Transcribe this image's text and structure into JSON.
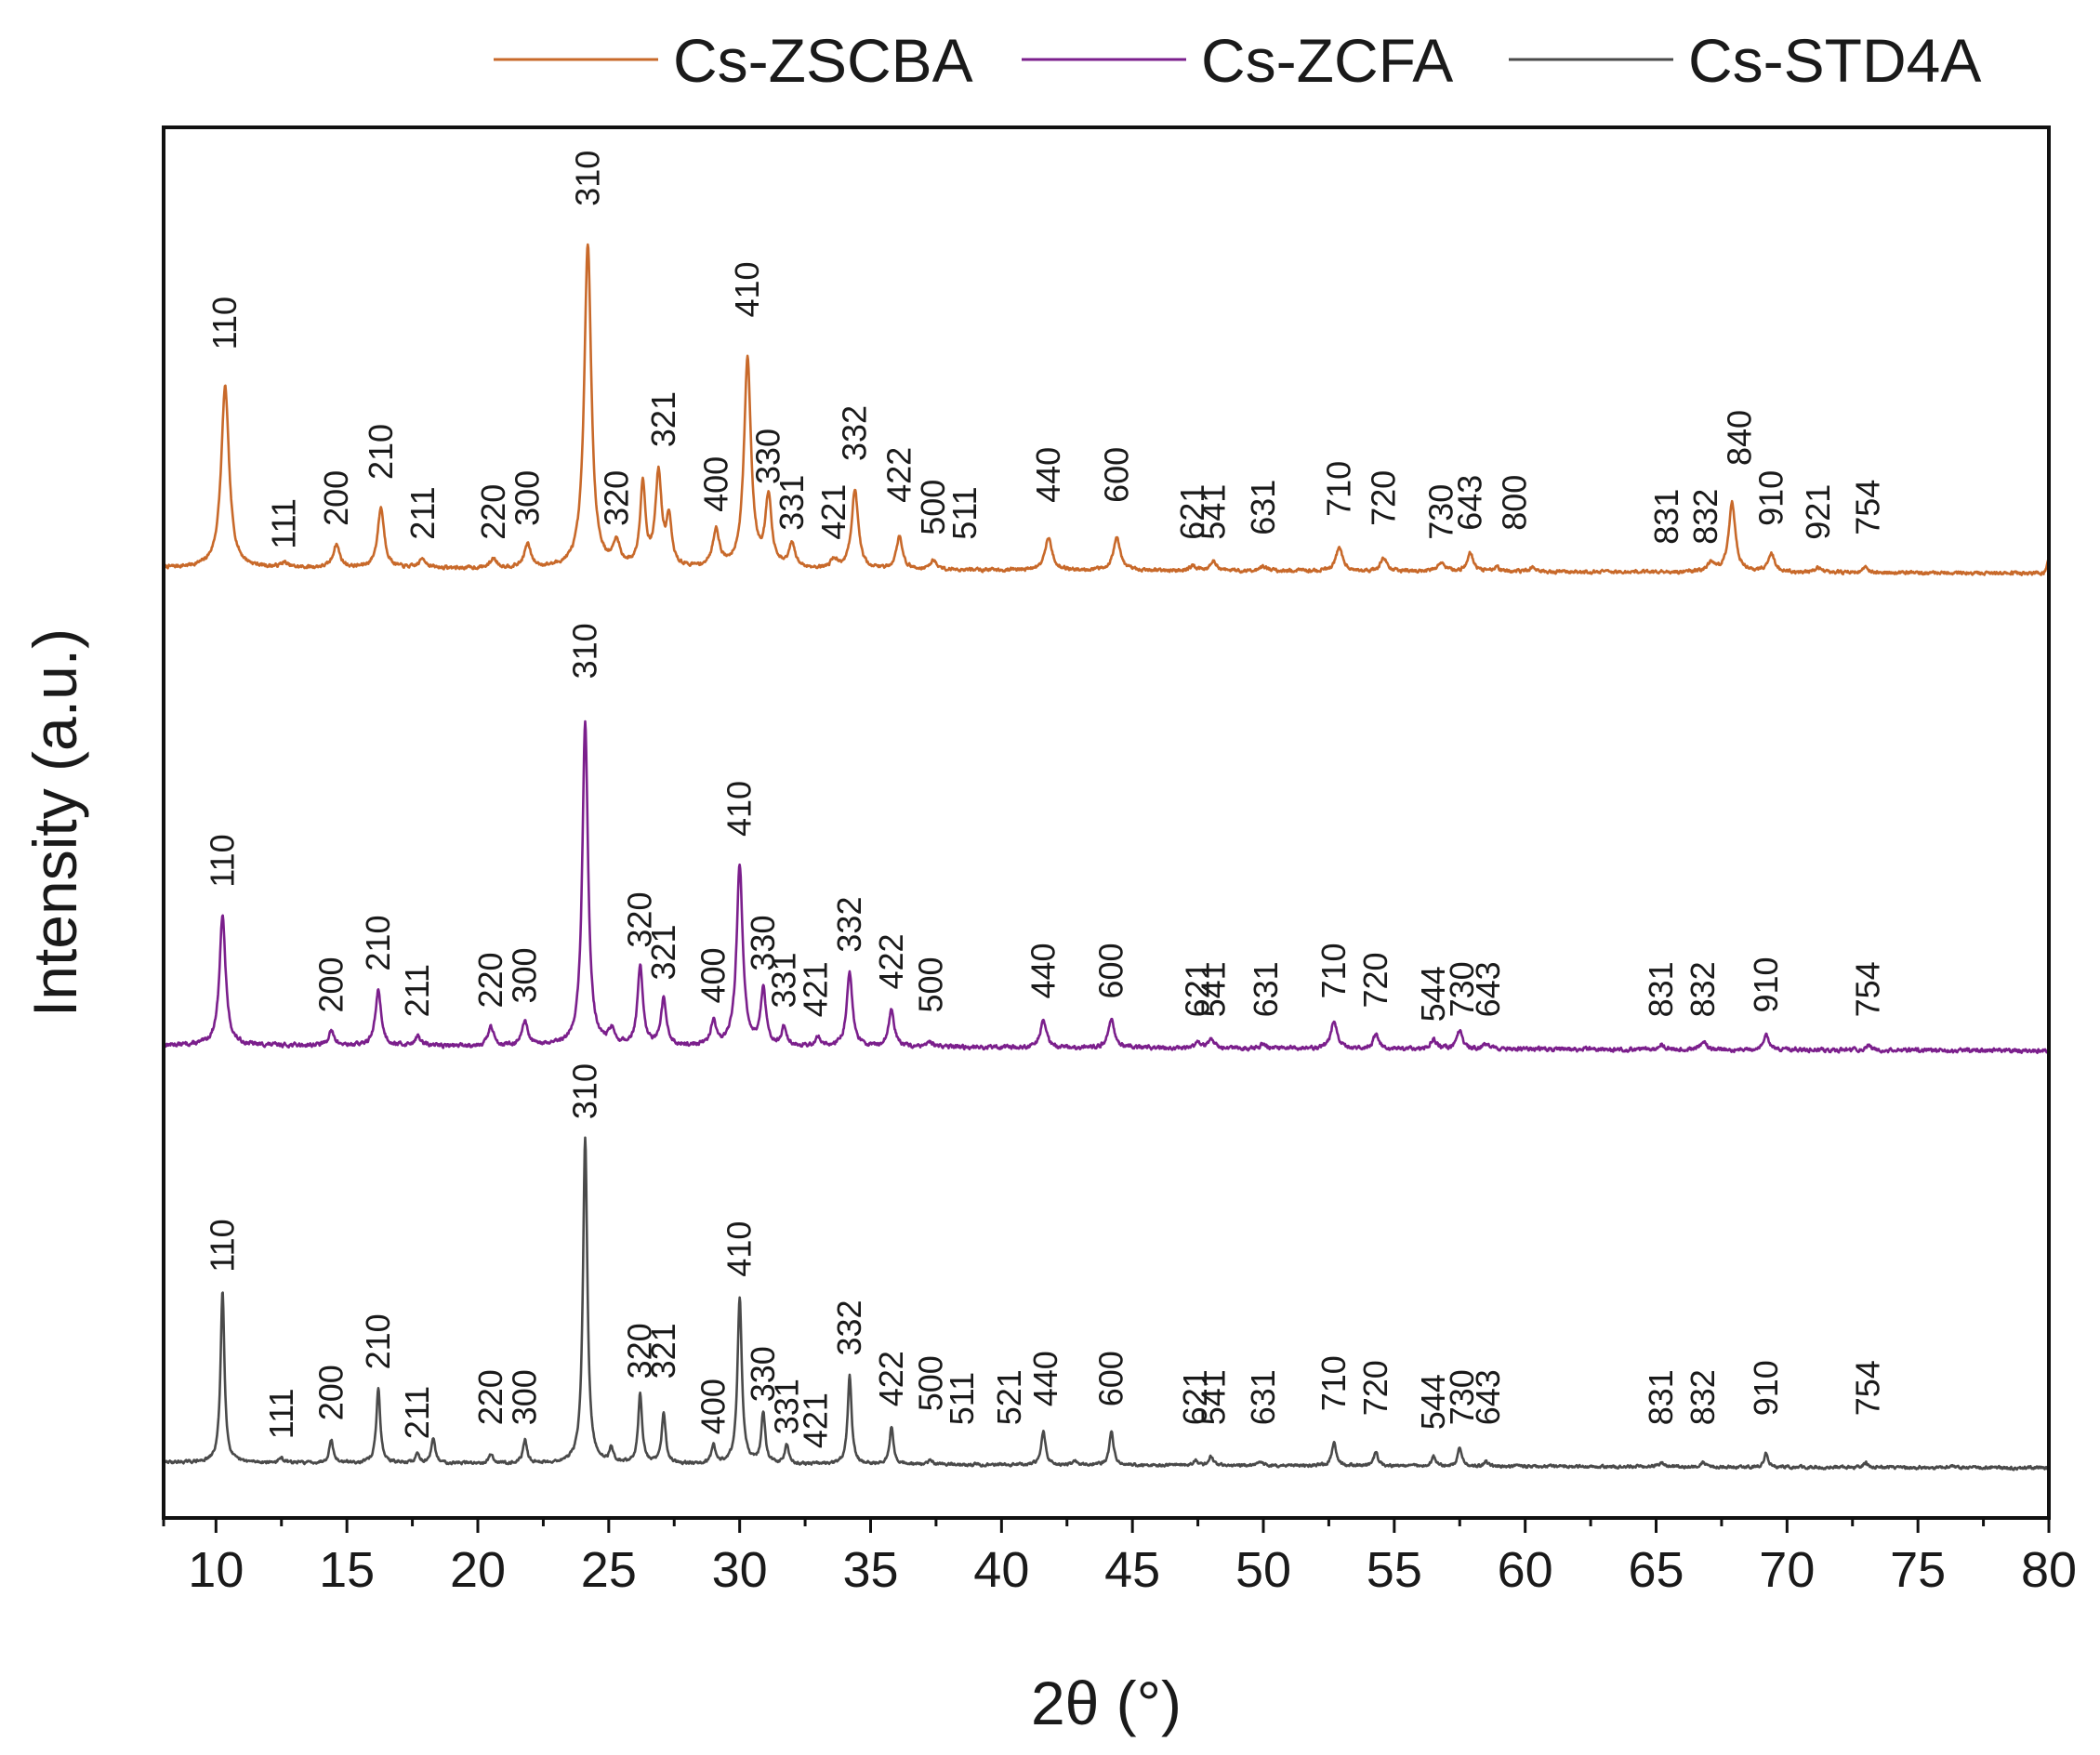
{
  "chart_data": {
    "type": "line",
    "title": "",
    "xlabel": "2θ (°)",
    "ylabel": "Intensity (a.u.)",
    "xlim": [
      8,
      80
    ],
    "ylim": [
      0,
      3.0
    ],
    "xticks": [
      "10",
      "15",
      "20",
      "25",
      "30",
      "35",
      "40",
      "45",
      "50",
      "55",
      "60",
      "65",
      "70",
      "75",
      "80"
    ],
    "legend_position": "top",
    "series": [
      {
        "name": "Cs-ZSCBA",
        "color": "#c8692a",
        "baseline": 2.05,
        "noise_seed": 7,
        "noise_amp": 0.006,
        "tail_rise": [
          79.8,
          0.03
        ],
        "peaks": [
          [
            10.35,
            0.39,
            0.18
          ],
          [
            12.6,
            0.01,
            0.15
          ],
          [
            14.6,
            0.05,
            0.15
          ],
          [
            16.3,
            0.13,
            0.15
          ],
          [
            17.9,
            0.02,
            0.15
          ],
          [
            20.6,
            0.02,
            0.15
          ],
          [
            21.9,
            0.05,
            0.15
          ],
          [
            24.2,
            0.7,
            0.16
          ],
          [
            25.3,
            0.05,
            0.15
          ],
          [
            26.3,
            0.18,
            0.12
          ],
          [
            26.9,
            0.2,
            0.14
          ],
          [
            27.3,
            0.1,
            0.12
          ],
          [
            29.1,
            0.08,
            0.15
          ],
          [
            30.3,
            0.45,
            0.16
          ],
          [
            31.1,
            0.15,
            0.14
          ],
          [
            32.0,
            0.05,
            0.14
          ],
          [
            33.6,
            0.02,
            0.14
          ],
          [
            34.4,
            0.17,
            0.15
          ],
          [
            36.1,
            0.07,
            0.14
          ],
          [
            37.4,
            0.02,
            0.14
          ],
          [
            41.8,
            0.07,
            0.16
          ],
          [
            44.4,
            0.07,
            0.16
          ],
          [
            47.3,
            0.01,
            0.14
          ],
          [
            48.1,
            0.02,
            0.14
          ],
          [
            50.0,
            0.01,
            0.14
          ],
          [
            52.9,
            0.05,
            0.16
          ],
          [
            54.6,
            0.03,
            0.14
          ],
          [
            56.8,
            0.02,
            0.14
          ],
          [
            57.9,
            0.04,
            0.14
          ],
          [
            58.9,
            0.01,
            0.14
          ],
          [
            60.3,
            0.01,
            0.14
          ],
          [
            67.1,
            0.02,
            0.14
          ],
          [
            67.9,
            0.15,
            0.15
          ],
          [
            69.4,
            0.04,
            0.15
          ],
          [
            71.2,
            0.01,
            0.14
          ],
          [
            73.0,
            0.01,
            0.14
          ]
        ],
        "peak_labels": [
          {
            "text": "110",
            "x": 10.35,
            "y": 2.52
          },
          {
            "text": "111",
            "x": 12.6,
            "y": 2.09
          },
          {
            "text": "200",
            "x": 14.6,
            "y": 2.14
          },
          {
            "text": "210",
            "x": 16.3,
            "y": 2.24
          },
          {
            "text": "211",
            "x": 17.9,
            "y": 2.11
          },
          {
            "text": "220",
            "x": 20.6,
            "y": 2.11
          },
          {
            "text": "300",
            "x": 21.9,
            "y": 2.14
          },
          {
            "text": "310",
            "x": 24.2,
            "y": 2.83
          },
          {
            "text": "320",
            "x": 25.3,
            "y": 2.14
          },
          {
            "text": "321",
            "x": 27.1,
            "y": 2.31
          },
          {
            "text": "400",
            "x": 29.1,
            "y": 2.17
          },
          {
            "text": "410",
            "x": 30.3,
            "y": 2.59
          },
          {
            "text": "330",
            "x": 31.1,
            "y": 2.23
          },
          {
            "text": "331",
            "x": 32.0,
            "y": 2.13
          },
          {
            "text": "421",
            "x": 33.6,
            "y": 2.11
          },
          {
            "text": "332",
            "x": 34.4,
            "y": 2.28
          },
          {
            "text": "422",
            "x": 36.1,
            "y": 2.19
          },
          {
            "text": "500",
            "x": 37.4,
            "y": 2.12
          },
          {
            "text": "511",
            "x": 38.6,
            "y": 2.11
          },
          {
            "text": "440",
            "x": 41.8,
            "y": 2.19
          },
          {
            "text": "600",
            "x": 44.4,
            "y": 2.19
          },
          {
            "text": "621",
            "x": 47.3,
            "y": 2.11
          },
          {
            "text": "541",
            "x": 48.1,
            "y": 2.11
          },
          {
            "text": "631",
            "x": 50.0,
            "y": 2.12
          },
          {
            "text": "710",
            "x": 52.9,
            "y": 2.16
          },
          {
            "text": "720",
            "x": 54.6,
            "y": 2.14
          },
          {
            "text": "730",
            "x": 56.8,
            "y": 2.11
          },
          {
            "text": "643",
            "x": 57.9,
            "y": 2.13
          },
          {
            "text": "800",
            "x": 59.6,
            "y": 2.13
          },
          {
            "text": "831",
            "x": 65.4,
            "y": 2.1
          },
          {
            "text": "832",
            "x": 66.9,
            "y": 2.1
          },
          {
            "text": "840",
            "x": 68.2,
            "y": 2.27
          },
          {
            "text": "910",
            "x": 69.4,
            "y": 2.14
          },
          {
            "text": "921",
            "x": 71.2,
            "y": 2.11
          },
          {
            "text": "754",
            "x": 73.1,
            "y": 2.12
          }
        ]
      },
      {
        "name": "Cs-ZCFA",
        "color": "#7b1f8c",
        "baseline": 1.02,
        "noise_seed": 13,
        "noise_amp": 0.007,
        "tail_rise": null,
        "peaks": [
          [
            10.25,
            0.28,
            0.14
          ],
          [
            14.4,
            0.03,
            0.13
          ],
          [
            16.2,
            0.12,
            0.13
          ],
          [
            17.7,
            0.02,
            0.13
          ],
          [
            20.5,
            0.04,
            0.13
          ],
          [
            21.8,
            0.05,
            0.13
          ],
          [
            24.1,
            0.7,
            0.13
          ],
          [
            25.1,
            0.03,
            0.13
          ],
          [
            26.2,
            0.17,
            0.12
          ],
          [
            27.1,
            0.1,
            0.12
          ],
          [
            29.0,
            0.05,
            0.13
          ],
          [
            30.0,
            0.39,
            0.14
          ],
          [
            30.9,
            0.12,
            0.12
          ],
          [
            31.7,
            0.04,
            0.12
          ],
          [
            33.0,
            0.02,
            0.12
          ],
          [
            34.2,
            0.16,
            0.13
          ],
          [
            35.8,
            0.08,
            0.13
          ],
          [
            37.3,
            0.01,
            0.12
          ],
          [
            41.6,
            0.06,
            0.14
          ],
          [
            44.2,
            0.06,
            0.14
          ],
          [
            47.5,
            0.01,
            0.13
          ],
          [
            48.0,
            0.02,
            0.13
          ],
          [
            50.0,
            0.01,
            0.13
          ],
          [
            52.7,
            0.06,
            0.14
          ],
          [
            54.3,
            0.03,
            0.13
          ],
          [
            56.5,
            0.02,
            0.13
          ],
          [
            57.5,
            0.04,
            0.13
          ],
          [
            58.5,
            0.01,
            0.13
          ],
          [
            65.2,
            0.01,
            0.13
          ],
          [
            66.8,
            0.02,
            0.13
          ],
          [
            69.2,
            0.03,
            0.13
          ],
          [
            73.1,
            0.01,
            0.13
          ]
        ],
        "peak_labels": [
          {
            "text": "110",
            "x": 10.25,
            "y": 1.36
          },
          {
            "text": "200",
            "x": 14.4,
            "y": 1.09
          },
          {
            "text": "210",
            "x": 16.2,
            "y": 1.18
          },
          {
            "text": "211",
            "x": 17.7,
            "y": 1.08
          },
          {
            "text": "220",
            "x": 20.5,
            "y": 1.1
          },
          {
            "text": "300",
            "x": 21.8,
            "y": 1.11
          },
          {
            "text": "310",
            "x": 24.1,
            "y": 1.81
          },
          {
            "text": "320",
            "x": 26.2,
            "y": 1.23
          },
          {
            "text": "321",
            "x": 27.1,
            "y": 1.16
          },
          {
            "text": "400",
            "x": 29.0,
            "y": 1.11
          },
          {
            "text": "410",
            "x": 30.0,
            "y": 1.47
          },
          {
            "text": "330",
            "x": 30.9,
            "y": 1.18
          },
          {
            "text": "331",
            "x": 31.7,
            "y": 1.1
          },
          {
            "text": "421",
            "x": 32.9,
            "y": 1.08
          },
          {
            "text": "332",
            "x": 34.2,
            "y": 1.22
          },
          {
            "text": "422",
            "x": 35.8,
            "y": 1.14
          },
          {
            "text": "500",
            "x": 37.3,
            "y": 1.09
          },
          {
            "text": "440",
            "x": 41.6,
            "y": 1.12
          },
          {
            "text": "600",
            "x": 44.2,
            "y": 1.12
          },
          {
            "text": "621",
            "x": 47.5,
            "y": 1.08
          },
          {
            "text": "541",
            "x": 48.1,
            "y": 1.08
          },
          {
            "text": "631",
            "x": 50.1,
            "y": 1.08
          },
          {
            "text": "710",
            "x": 52.7,
            "y": 1.12
          },
          {
            "text": "720",
            "x": 54.3,
            "y": 1.1
          },
          {
            "text": "544",
            "x": 56.5,
            "y": 1.07
          },
          {
            "text": "730",
            "x": 57.6,
            "y": 1.08
          },
          {
            "text": "643",
            "x": 58.6,
            "y": 1.08
          },
          {
            "text": "831",
            "x": 65.2,
            "y": 1.08
          },
          {
            "text": "832",
            "x": 66.8,
            "y": 1.08
          },
          {
            "text": "910",
            "x": 69.2,
            "y": 1.09
          },
          {
            "text": "754",
            "x": 73.1,
            "y": 1.08
          }
        ]
      },
      {
        "name": "Cs-STD4A",
        "color": "#4a4a4a",
        "baseline": 0.12,
        "noise_seed": 29,
        "noise_amp": 0.005,
        "tail_rise": null,
        "peaks": [
          [
            10.25,
            0.37,
            0.09
          ],
          [
            12.5,
            0.01,
            0.09
          ],
          [
            14.4,
            0.05,
            0.09
          ],
          [
            16.2,
            0.16,
            0.09
          ],
          [
            17.7,
            0.02,
            0.09
          ],
          [
            18.3,
            0.05,
            0.09
          ],
          [
            20.5,
            0.02,
            0.09
          ],
          [
            21.8,
            0.05,
            0.09
          ],
          [
            24.1,
            0.7,
            0.1
          ],
          [
            25.1,
            0.03,
            0.09
          ],
          [
            26.2,
            0.15,
            0.09
          ],
          [
            27.1,
            0.11,
            0.09
          ],
          [
            29.0,
            0.04,
            0.09
          ],
          [
            30.0,
            0.36,
            0.1
          ],
          [
            30.9,
            0.11,
            0.09
          ],
          [
            31.8,
            0.04,
            0.09
          ],
          [
            34.2,
            0.19,
            0.09
          ],
          [
            35.8,
            0.08,
            0.09
          ],
          [
            37.3,
            0.01,
            0.09
          ],
          [
            41.6,
            0.07,
            0.1
          ],
          [
            42.8,
            0.01,
            0.09
          ],
          [
            44.2,
            0.07,
            0.1
          ],
          [
            47.4,
            0.01,
            0.09
          ],
          [
            48.0,
            0.02,
            0.09
          ],
          [
            49.9,
            0.01,
            0.09
          ],
          [
            52.7,
            0.05,
            0.1
          ],
          [
            54.3,
            0.03,
            0.09
          ],
          [
            56.5,
            0.02,
            0.09
          ],
          [
            57.5,
            0.04,
            0.09
          ],
          [
            58.5,
            0.01,
            0.09
          ],
          [
            65.2,
            0.01,
            0.09
          ],
          [
            66.8,
            0.01,
            0.09
          ],
          [
            69.2,
            0.03,
            0.09
          ],
          [
            73.0,
            0.01,
            0.09
          ],
          [
            76.3,
            0.005,
            0.09
          ]
        ],
        "peak_labels": [
          {
            "text": "110",
            "x": 10.25,
            "y": 0.53
          },
          {
            "text": "111",
            "x": 12.5,
            "y": 0.17
          },
          {
            "text": "200",
            "x": 14.4,
            "y": 0.21
          },
          {
            "text": "210",
            "x": 16.2,
            "y": 0.32
          },
          {
            "text": "211",
            "x": 17.7,
            "y": 0.17
          },
          {
            "text": "220",
            "x": 20.5,
            "y": 0.2
          },
          {
            "text": "300",
            "x": 21.8,
            "y": 0.2
          },
          {
            "text": "310",
            "x": 24.1,
            "y": 0.86
          },
          {
            "text": "320",
            "x": 26.2,
            "y": 0.3
          },
          {
            "text": "321",
            "x": 27.1,
            "y": 0.3
          },
          {
            "text": "400",
            "x": 29.0,
            "y": 0.18
          },
          {
            "text": "410",
            "x": 30.0,
            "y": 0.52
          },
          {
            "text": "330",
            "x": 30.9,
            "y": 0.25
          },
          {
            "text": "331",
            "x": 31.8,
            "y": 0.18
          },
          {
            "text": "421",
            "x": 32.9,
            "y": 0.15
          },
          {
            "text": "332",
            "x": 34.2,
            "y": 0.35
          },
          {
            "text": "422",
            "x": 35.8,
            "y": 0.24
          },
          {
            "text": "500",
            "x": 37.3,
            "y": 0.23
          },
          {
            "text": "511",
            "x": 38.5,
            "y": 0.2
          },
          {
            "text": "521",
            "x": 40.3,
            "y": 0.2
          },
          {
            "text": "440",
            "x": 41.7,
            "y": 0.24
          },
          {
            "text": "600",
            "x": 44.2,
            "y": 0.24
          },
          {
            "text": "621",
            "x": 47.4,
            "y": 0.2
          },
          {
            "text": "541",
            "x": 48.1,
            "y": 0.2
          },
          {
            "text": "631",
            "x": 50.0,
            "y": 0.2
          },
          {
            "text": "710",
            "x": 52.7,
            "y": 0.23
          },
          {
            "text": "720",
            "x": 54.3,
            "y": 0.22
          },
          {
            "text": "544",
            "x": 56.5,
            "y": 0.19
          },
          {
            "text": "730",
            "x": 57.6,
            "y": 0.2
          },
          {
            "text": "643",
            "x": 58.6,
            "y": 0.2
          },
          {
            "text": "831",
            "x": 65.2,
            "y": 0.2
          },
          {
            "text": "832",
            "x": 66.8,
            "y": 0.2
          },
          {
            "text": "910",
            "x": 69.2,
            "y": 0.22
          },
          {
            "text": "754",
            "x": 73.1,
            "y": 0.22
          }
        ]
      }
    ]
  }
}
